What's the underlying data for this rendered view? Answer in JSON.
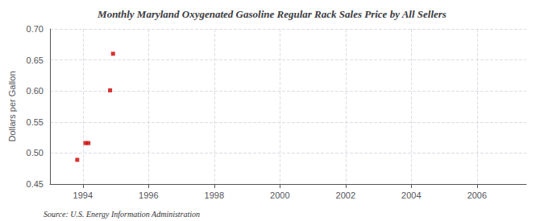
{
  "chart_data": {
    "type": "scatter",
    "title": "Monthly Maryland Oxygenated Gasoline Regular Rack Sales Price by All Sellers",
    "ylabel": "Dollars per Gallon",
    "annotations": [
      "Source: U.S. Energy Information Administration"
    ],
    "x": [
      1993.83,
      1994.08,
      1994.17,
      1994.83,
      1994.92
    ],
    "values": [
      0.489,
      0.516,
      0.516,
      0.601,
      0.66
    ],
    "color": "#cc0000",
    "marker": "square",
    "xlim": [
      1993.0,
      2007.5
    ],
    "ylim": [
      0.45,
      0.7
    ],
    "xticks": [
      1994,
      1996,
      1998,
      2000,
      2002,
      2004,
      2006
    ],
    "yticks": [
      0.45,
      {
        "value": 0.5,
        "label": "0.50"
      },
      0.55,
      {
        "value": 0.6,
        "label": "0.60"
      },
      0.65,
      {
        "value": 0.7,
        "label": "0.70"
      }
    ],
    "grid": true
  }
}
